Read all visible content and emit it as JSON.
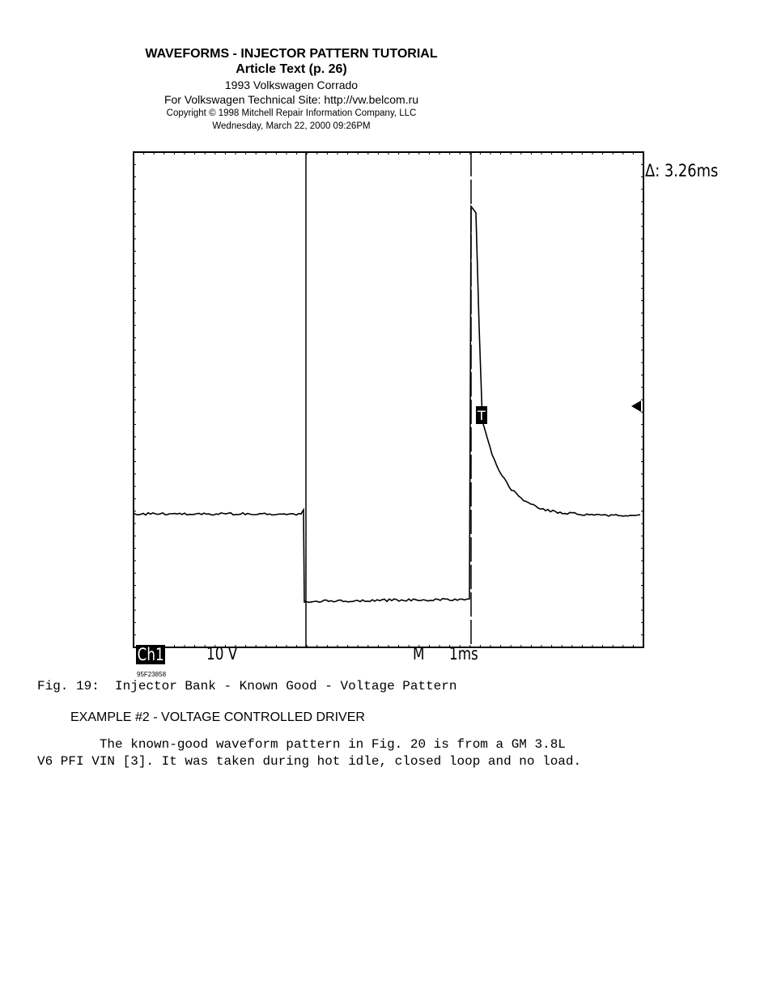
{
  "header": {
    "title": "WAVEFORMS - INJECTOR PATTERN TUTORIAL",
    "subtitle": "Article Text (p. 26)",
    "vehicle": "1993 Volkswagen Corrado",
    "site": "For Volkswagen Technical Site:  http://vw.belcom.ru",
    "copyright": "Copyright © 1998 Mitchell Repair Information Company, LLC",
    "date": "Wednesday, March 22, 2000  09:26PM"
  },
  "figure": {
    "delta": "Δ: 3.26ms",
    "channel": "Ch1",
    "volts_per_div": "10 V",
    "timebase_label": "M",
    "timebase": "1ms",
    "trigger": "T",
    "code": "95F23858",
    "caption": "Fig. 19:  Injector Bank - Known Good - Voltage Pattern"
  },
  "section": {
    "heading": "EXAMPLE #2 - VOLTAGE CONTROLLED DRIVER",
    "para_line1": "        The known-good waveform pattern in Fig. 20 is from a GM 3.8L",
    "para_line2": "V6 PFI VIN [3]. It was taken during hot idle, closed loop and no load."
  }
}
